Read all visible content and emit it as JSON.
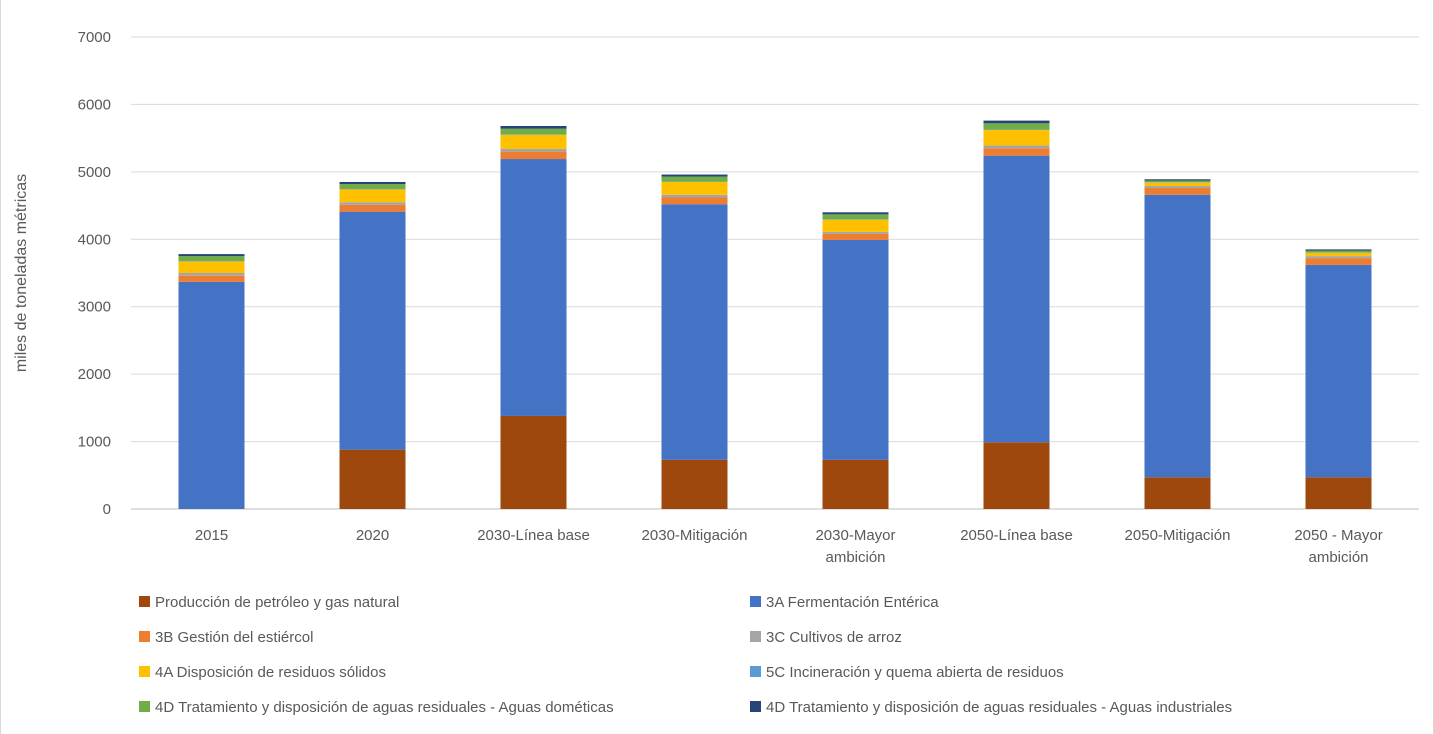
{
  "chart_data": {
    "type": "bar",
    "stacked": true,
    "title": "",
    "xlabel": "",
    "ylabel": "miles de toneladas métricas",
    "ylim": [
      0,
      7000
    ],
    "yticks": [
      0,
      1000,
      2000,
      3000,
      4000,
      5000,
      6000,
      7000
    ],
    "grid": true,
    "legend_position": "bottom",
    "categories": [
      [
        "2015"
      ],
      [
        "2020"
      ],
      [
        "2030-Línea base"
      ],
      [
        "2030-Mitigación"
      ],
      [
        "2030-Mayor",
        "ambición"
      ],
      [
        "2050-Línea base"
      ],
      [
        "2050-Mitigación"
      ],
      [
        "2050 - Mayor",
        "ambición"
      ]
    ],
    "series": [
      {
        "name": "Producción de petróleo y gas natural",
        "color": "#9E480E",
        "values": [
          0,
          880,
          1380,
          730,
          730,
          990,
          470,
          470
        ]
      },
      {
        "name": "3A Fermentación Entérica",
        "color": "#4472C4",
        "values": [
          3370,
          3530,
          3810,
          3790,
          3260,
          4250,
          4190,
          3150
        ]
      },
      {
        "name": "3B Gestión del estiércol",
        "color": "#ED7D31",
        "values": [
          90,
          100,
          110,
          100,
          90,
          110,
          100,
          100
        ]
      },
      {
        "name": "3C Cultivos de arroz",
        "color": "#A5A5A5",
        "values": [
          40,
          40,
          40,
          40,
          30,
          40,
          30,
          30
        ]
      },
      {
        "name": "4A Disposición de residuos sólidos",
        "color": "#FFC000",
        "values": [
          170,
          190,
          210,
          190,
          180,
          230,
          50,
          50
        ]
      },
      {
        "name": "5C Incineración y quema abierta de residuos",
        "color": "#5B9BD5",
        "values": [
          5,
          5,
          5,
          5,
          5,
          5,
          5,
          5
        ]
      },
      {
        "name": "4D Tratamiento y disposición de aguas residuales - Aguas dométicas",
        "color": "#70AD47",
        "values": [
          75,
          75,
          85,
          75,
          75,
          95,
          25,
          25
        ]
      },
      {
        "name": "4D Tratamiento y disposición de aguas residuales - Aguas industriales",
        "color": "#264478",
        "values": [
          30,
          30,
          40,
          30,
          30,
          40,
          20,
          20
        ]
      }
    ]
  }
}
